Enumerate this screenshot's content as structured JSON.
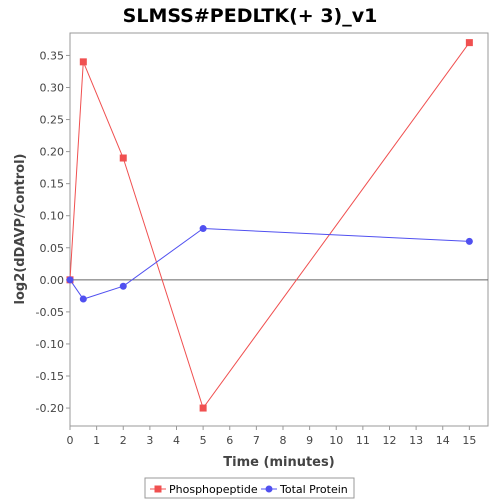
{
  "chart_data": {
    "type": "line",
    "title": "SLMSS#PEDLTK(+ 3)_v1",
    "xlabel": "Time (minutes)",
    "ylabel": "log2(dDAVP/Control)",
    "xlim": [
      0,
      15.7
    ],
    "ylim": [
      -0.228,
      0.385
    ],
    "xticks": [
      0,
      1,
      2,
      3,
      4,
      5,
      6,
      7,
      8,
      9,
      10,
      11,
      12,
      13,
      14,
      15
    ],
    "xtick_labels": [
      "0",
      "1",
      "2",
      "3",
      "4",
      "5",
      "6",
      "7",
      "8",
      "9",
      "10",
      "11",
      "12",
      "13",
      "14",
      "15"
    ],
    "yticks": [
      -0.2,
      -0.15,
      -0.1,
      -0.05,
      0.0,
      0.05,
      0.1,
      0.15,
      0.2,
      0.25,
      0.3,
      0.35
    ],
    "ytick_labels": [
      "-0.20",
      "-0.15",
      "-0.10",
      "-0.05",
      "0.00",
      "0.05",
      "0.10",
      "0.15",
      "0.20",
      "0.25",
      "0.30",
      "0.35"
    ],
    "grid": false,
    "zero_line": true,
    "legend_position": "bottom",
    "series": [
      {
        "name": "Phosphopeptide",
        "color": "#f05050",
        "marker": "square",
        "x": [
          0,
          0.5,
          2,
          5,
          15
        ],
        "y": [
          0.0,
          0.34,
          0.19,
          -0.2,
          0.37
        ]
      },
      {
        "name": "Total Protein",
        "color": "#5050f0",
        "marker": "circle",
        "x": [
          0,
          0.5,
          2,
          5,
          15
        ],
        "y": [
          0.0,
          -0.03,
          -0.01,
          0.08,
          0.06
        ]
      }
    ]
  }
}
